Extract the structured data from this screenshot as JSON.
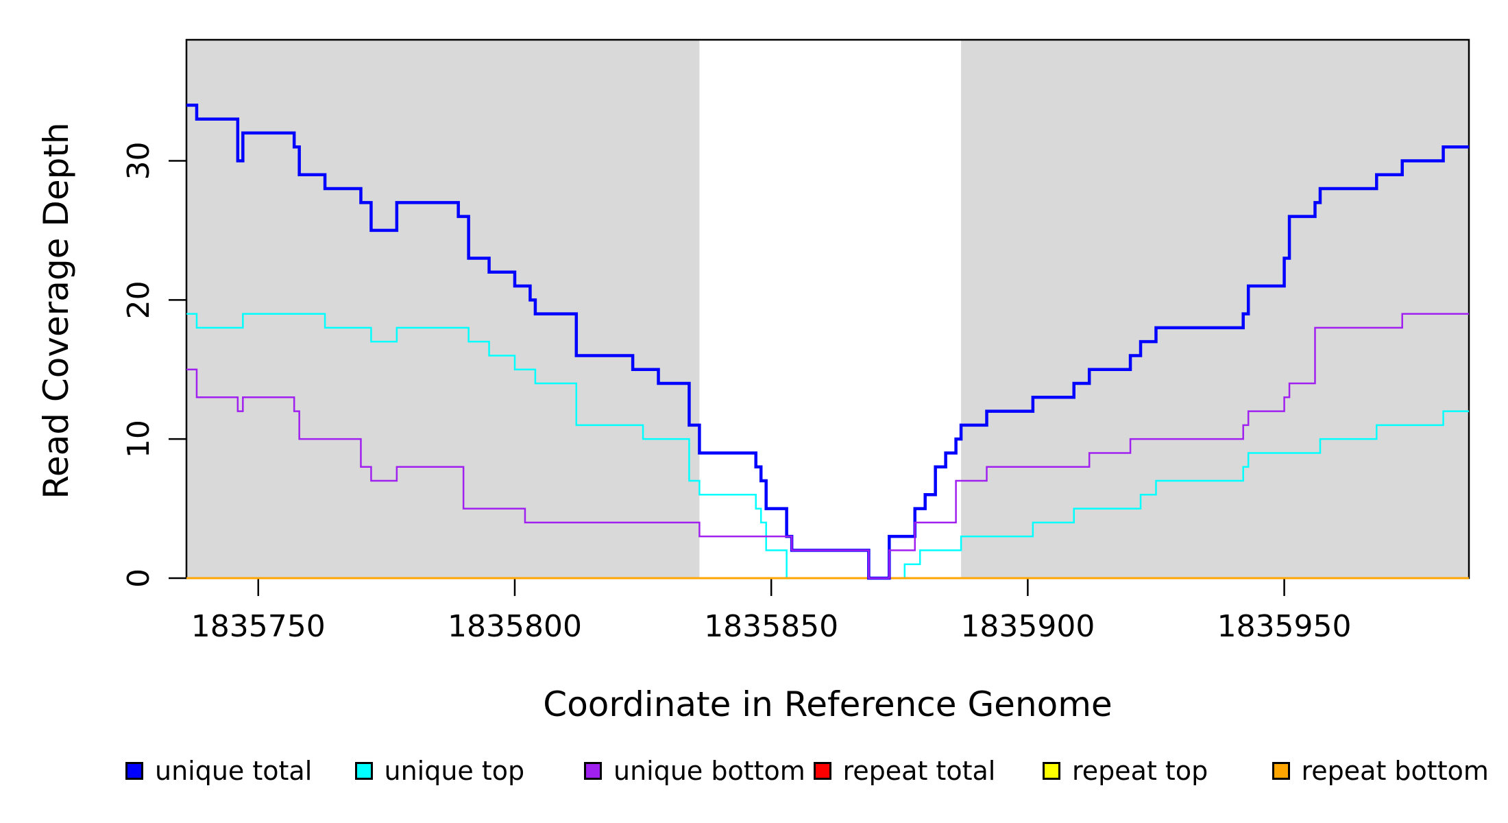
{
  "chart_data": {
    "type": "line",
    "subtype": "step",
    "title": "",
    "xlabel": "Coordinate in Reference Genome",
    "ylabel": "Read Coverage Depth",
    "xlim": [
      1835736,
      1835986
    ],
    "ylim": [
      0,
      38.7
    ],
    "x_ticks": [
      1835750,
      1835800,
      1835850,
      1835900,
      1835950
    ],
    "y_ticks": [
      0,
      10,
      20,
      30
    ],
    "grid": false,
    "legend_position": "bottom",
    "background_color": "#FFFFFF",
    "shaded_region_color": "#D9D9D9",
    "shaded_regions": [
      {
        "x0": 1835736,
        "x1": 1835836
      },
      {
        "x0": 1835887,
        "x1": 1835986
      }
    ],
    "series": [
      {
        "name": "unique total",
        "color": "#0000FF",
        "line_width": 4.5,
        "steps": [
          [
            1835736,
            34
          ],
          [
            1835738,
            33
          ],
          [
            1835746,
            30
          ],
          [
            1835747,
            32
          ],
          [
            1835757,
            31
          ],
          [
            1835758,
            29
          ],
          [
            1835763,
            28
          ],
          [
            1835770,
            27
          ],
          [
            1835772,
            25
          ],
          [
            1835777,
            27
          ],
          [
            1835789,
            26
          ],
          [
            1835791,
            23
          ],
          [
            1835795,
            22
          ],
          [
            1835800,
            21
          ],
          [
            1835803,
            20
          ],
          [
            1835804,
            19
          ],
          [
            1835812,
            16
          ],
          [
            1835823,
            15
          ],
          [
            1835828,
            14
          ],
          [
            1835834,
            11
          ],
          [
            1835836,
            9
          ],
          [
            1835847,
            8
          ],
          [
            1835848,
            7
          ],
          [
            1835849,
            5
          ],
          [
            1835853,
            3
          ],
          [
            1835854,
            2
          ],
          [
            1835869,
            0
          ],
          [
            1835873,
            3
          ],
          [
            1835878,
            5
          ],
          [
            1835880,
            6
          ],
          [
            1835882,
            8
          ],
          [
            1835884,
            9
          ],
          [
            1835886,
            10
          ],
          [
            1835887,
            11
          ],
          [
            1835892,
            12
          ],
          [
            1835901,
            13
          ],
          [
            1835909,
            14
          ],
          [
            1835912,
            15
          ],
          [
            1835920,
            16
          ],
          [
            1835922,
            17
          ],
          [
            1835925,
            18
          ],
          [
            1835942,
            19
          ],
          [
            1835943,
            21
          ],
          [
            1835950,
            23
          ],
          [
            1835951,
            26
          ],
          [
            1835956,
            27
          ],
          [
            1835957,
            28
          ],
          [
            1835968,
            29
          ],
          [
            1835973,
            30
          ],
          [
            1835981,
            31
          ]
        ]
      },
      {
        "name": "unique top",
        "color": "#00FFFF",
        "line_width": 2.5,
        "steps": [
          [
            1835736,
            19
          ],
          [
            1835738,
            18
          ],
          [
            1835747,
            19
          ],
          [
            1835763,
            18
          ],
          [
            1835772,
            17
          ],
          [
            1835777,
            18
          ],
          [
            1835791,
            17
          ],
          [
            1835795,
            16
          ],
          [
            1835800,
            15
          ],
          [
            1835804,
            14
          ],
          [
            1835812,
            11
          ],
          [
            1835825,
            10
          ],
          [
            1835834,
            7
          ],
          [
            1835836,
            6
          ],
          [
            1835847,
            5
          ],
          [
            1835848,
            4
          ],
          [
            1835849,
            2
          ],
          [
            1835853,
            0
          ],
          [
            1835876,
            1
          ],
          [
            1835879,
            2
          ],
          [
            1835887,
            3
          ],
          [
            1835901,
            4
          ],
          [
            1835909,
            5
          ],
          [
            1835922,
            6
          ],
          [
            1835925,
            7
          ],
          [
            1835942,
            8
          ],
          [
            1835943,
            9
          ],
          [
            1835957,
            10
          ],
          [
            1835968,
            11
          ],
          [
            1835981,
            12
          ]
        ]
      },
      {
        "name": "unique bottom",
        "color": "#A020F0",
        "line_width": 2.5,
        "steps": [
          [
            1835736,
            15
          ],
          [
            1835738,
            13
          ],
          [
            1835746,
            12
          ],
          [
            1835747,
            13
          ],
          [
            1835757,
            12
          ],
          [
            1835758,
            10
          ],
          [
            1835770,
            8
          ],
          [
            1835772,
            7
          ],
          [
            1835777,
            8
          ],
          [
            1835790,
            5
          ],
          [
            1835802,
            4
          ],
          [
            1835836,
            3
          ],
          [
            1835854,
            2
          ],
          [
            1835869,
            0
          ],
          [
            1835873,
            2
          ],
          [
            1835878,
            4
          ],
          [
            1835886,
            7
          ],
          [
            1835892,
            8
          ],
          [
            1835912,
            9
          ],
          [
            1835920,
            10
          ],
          [
            1835942,
            11
          ],
          [
            1835943,
            12
          ],
          [
            1835950,
            13
          ],
          [
            1835951,
            14
          ],
          [
            1835956,
            18
          ],
          [
            1835973,
            19
          ]
        ]
      },
      {
        "name": "repeat total",
        "color": "#FF0000",
        "line_width": 3,
        "steps": [
          [
            1835736,
            0
          ]
        ]
      },
      {
        "name": "repeat top",
        "color": "#FFFF00",
        "line_width": 3,
        "steps": [
          [
            1835736,
            0
          ]
        ]
      },
      {
        "name": "repeat bottom",
        "color": "#FFA500",
        "line_width": 3,
        "steps": [
          [
            1835736,
            0
          ]
        ]
      }
    ],
    "draw_order": [
      "repeat total",
      "repeat top",
      "unique top",
      "repeat bottom",
      "unique total",
      "unique bottom"
    ]
  },
  "legend": {
    "items": [
      {
        "label": "unique total",
        "color": "#0000FF"
      },
      {
        "label": "unique top",
        "color": "#00FFFF"
      },
      {
        "label": "unique bottom",
        "color": "#A020F0"
      },
      {
        "label": "repeat total",
        "color": "#FF0000"
      },
      {
        "label": "repeat top",
        "color": "#FFFF00"
      },
      {
        "label": "repeat bottom",
        "color": "#FFA500"
      }
    ]
  }
}
